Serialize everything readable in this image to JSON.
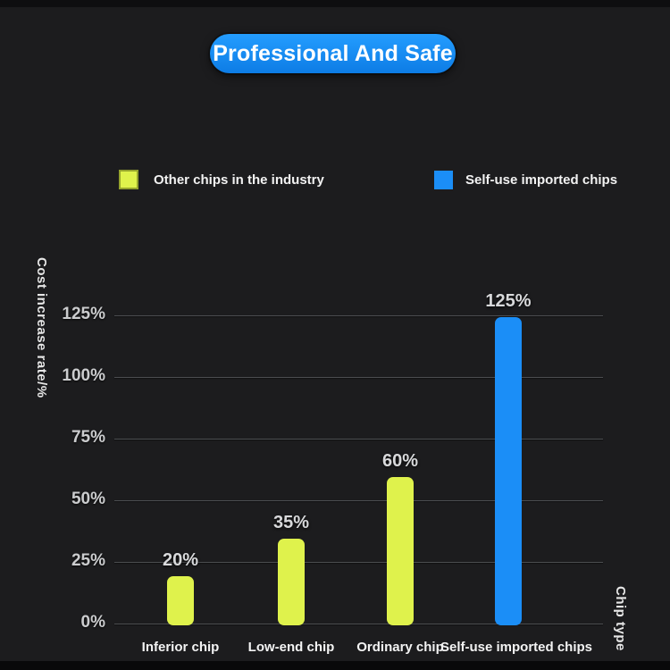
{
  "title": {
    "label": "Professional And Safe"
  },
  "legend": {
    "items": [
      {
        "label": "Other chips in the industry",
        "color": "#dff24c"
      },
      {
        "label": "Self-use imported chips",
        "color": "#1b8ef7"
      }
    ]
  },
  "chart_data": {
    "type": "bar",
    "title": "Professional And Safe",
    "categories": [
      "Inferior chip",
      "Low-end chip",
      "Ordinary chip",
      "Self-use imported chips"
    ],
    "values": [
      20,
      35,
      60,
      125
    ],
    "value_labels": [
      "20%",
      "35%",
      "60%",
      "125%"
    ],
    "bar_colors": [
      "#dff24c",
      "#dff24c",
      "#dff24c",
      "#1b8ef7"
    ],
    "xlabel": "Chip type",
    "ylabel": "Cost increase rate/%",
    "ytick_labels": [
      "0%",
      "25%",
      "50%",
      "75%",
      "100%",
      "125%"
    ],
    "ytick_values": [
      0,
      25,
      50,
      75,
      100,
      125
    ],
    "ylim": [
      0,
      137.5
    ],
    "grid": true,
    "legend_position": "top",
    "series": [
      {
        "name": "Other chips in the industry",
        "color": "#dff24c"
      },
      {
        "name": "Self-use imported chips",
        "color": "#1b8ef7"
      }
    ]
  },
  "colors": {
    "background": "#1c1c1e",
    "pill_blue": "#1489f2",
    "yellow": "#dff24c",
    "blue": "#1b8ef7",
    "gridline": "#4b4d50",
    "tick_text": "#cbccce",
    "label_text": "#f3f3f3"
  }
}
